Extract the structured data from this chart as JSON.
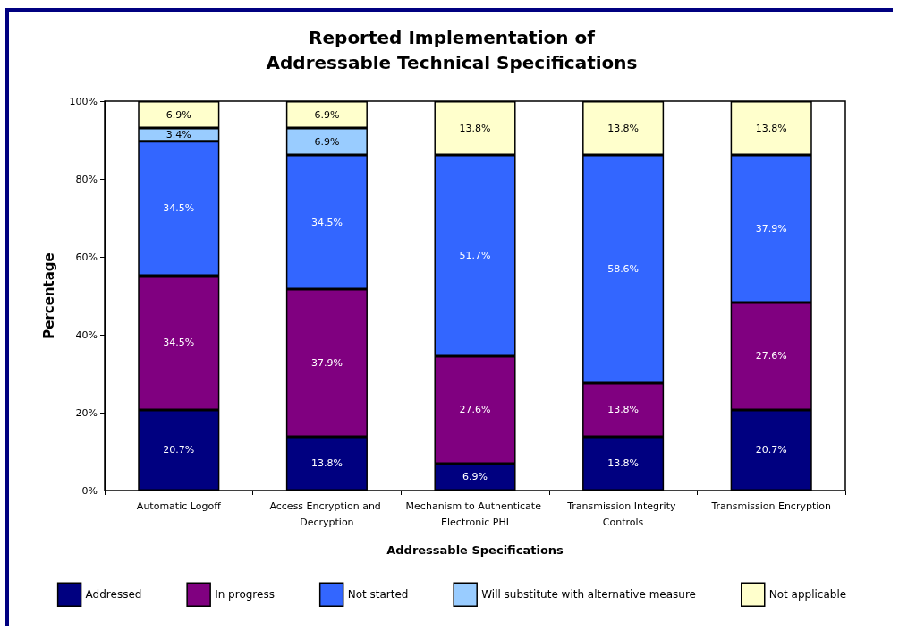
{
  "chart_data": {
    "type": "bar",
    "title": "Reported Implementation of\nAddressable Technical Specifications",
    "xlabel": "Addressable Specifications",
    "ylabel": "Percentage",
    "categories": [
      "Automatic Logoff",
      "Access Encryption and Decryption",
      "Mechanism to Authenticate Electronic PHI",
      "Transmission Integrity Controls",
      "Transmission Encryption"
    ],
    "stacked": true,
    "series": [
      {
        "name": "Addressed",
        "color": "#000080",
        "values": [
          20.7,
          13.8,
          6.9,
          13.8,
          20.7
        ],
        "value_labels": [
          "20.7%",
          "13.8%",
          "6.9%",
          "13.8%",
          "20.7%"
        ]
      },
      {
        "name": "In progress",
        "color": "#800080",
        "values": [
          34.5,
          37.9,
          27.6,
          13.8,
          27.6
        ],
        "value_labels": [
          "34.5%",
          "37.9%",
          "27.6%",
          "13.8%",
          "27.6%"
        ]
      },
      {
        "name": "Not started",
        "color": "#3366ff",
        "values": [
          34.5,
          34.5,
          51.7,
          58.6,
          37.9
        ],
        "value_labels": [
          "34.5%",
          "34.5%",
          "51.7%",
          "58.6%",
          "37.9%"
        ]
      },
      {
        "name": "Will substitute with alternative measure",
        "color": "#99ccff",
        "values": [
          3.4,
          6.9,
          null,
          null,
          null
        ],
        "value_labels": [
          "3.4%",
          "6.9%",
          null,
          null,
          null
        ]
      },
      {
        "name": "Not applicable",
        "color": "#ffffcc",
        "values": [
          6.9,
          6.9,
          13.8,
          13.8,
          13.8
        ],
        "value_labels": [
          "6.9%",
          "6.9%",
          "13.8%",
          "13.8%",
          "13.8%"
        ]
      }
    ],
    "ylim": [
      0,
      100
    ],
    "yticks": [
      {
        "value": 0,
        "label": "0%"
      },
      {
        "value": 20,
        "label": "20%"
      },
      {
        "value": 40,
        "label": "40%"
      },
      {
        "value": 60,
        "label": "60%"
      },
      {
        "value": 80,
        "label": "80%"
      },
      {
        "value": 100,
        "label": "100%"
      }
    ],
    "grid": false,
    "legend": "bottom"
  }
}
